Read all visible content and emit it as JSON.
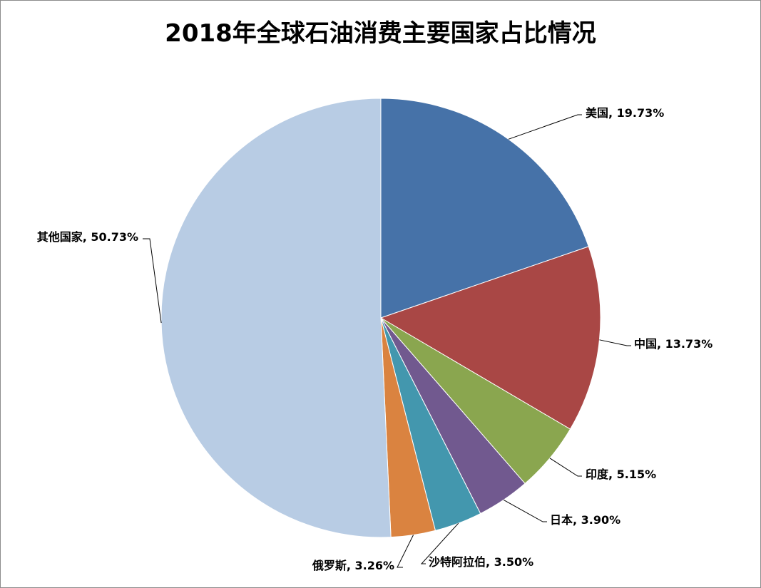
{
  "chart_data": {
    "type": "pie",
    "title": "2018年全球石油消费主要国家占比情况",
    "slices": [
      {
        "label": "美国",
        "value": 19.73,
        "color": "#4672A8",
        "data_label": "美国, 19.73%"
      },
      {
        "label": "中国",
        "value": 13.73,
        "color": "#A94745",
        "data_label": "中国, 13.73%"
      },
      {
        "label": "印度",
        "value": 5.15,
        "color": "#8AA64F",
        "data_label": "印度, 5.15%"
      },
      {
        "label": "日本",
        "value": 3.9,
        "color": "#71598F",
        "data_label": "日本, 3.90%"
      },
      {
        "label": "沙特阿拉伯",
        "value": 3.5,
        "color": "#4397AE",
        "data_label": "沙特阿拉伯, 3.50%"
      },
      {
        "label": "俄罗斯",
        "value": 3.26,
        "color": "#DA8340",
        "data_label": "俄罗斯, 3.26%"
      },
      {
        "label": "其他国家",
        "value": 50.73,
        "color": "#B8CCE4",
        "data_label": "其他国家, 50.73%"
      }
    ],
    "start_angle": "12 o'clock",
    "direction": "clockwise",
    "legend": "none"
  }
}
